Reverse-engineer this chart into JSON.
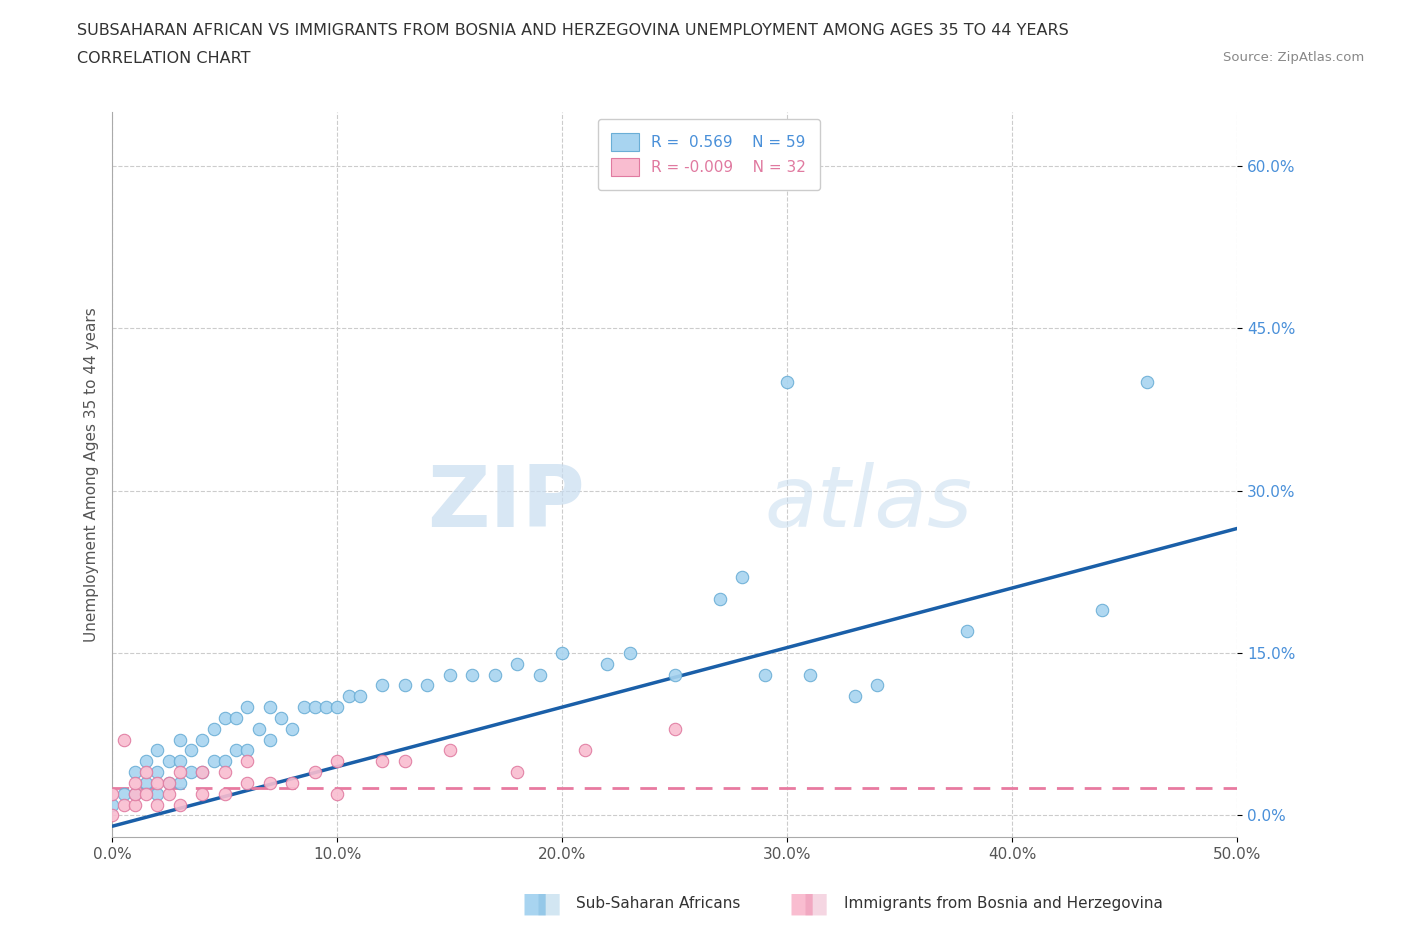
{
  "title_line1": "SUBSAHARAN AFRICAN VS IMMIGRANTS FROM BOSNIA AND HERZEGOVINA UNEMPLOYMENT AMONG AGES 35 TO 44 YEARS",
  "title_line2": "CORRELATION CHART",
  "source_text": "Source: ZipAtlas.com",
  "ylabel": "Unemployment Among Ages 35 to 44 years",
  "xlim": [
    0.0,
    0.5
  ],
  "ylim": [
    -0.02,
    0.65
  ],
  "xtick_labels": [
    "0.0%",
    "10.0%",
    "20.0%",
    "30.0%",
    "40.0%",
    "50.0%"
  ],
  "xtick_vals": [
    0.0,
    0.1,
    0.2,
    0.3,
    0.4,
    0.5
  ],
  "ytick_labels": [
    "0.0%",
    "15.0%",
    "30.0%",
    "45.0%",
    "60.0%"
  ],
  "ytick_vals": [
    0.0,
    0.15,
    0.3,
    0.45,
    0.6
  ],
  "watermark_zip": "ZIP",
  "watermark_atlas": "atlas",
  "legend_R1": "R =  0.569",
  "legend_N1": "N = 59",
  "legend_R2": "R = -0.009",
  "legend_N2": "N = 32",
  "color_blue_fill": "#A8D4F0",
  "color_blue_edge": "#6aaed6",
  "color_pink_fill": "#F9BDD0",
  "color_pink_edge": "#e07aA0",
  "line_blue": "#1a5fa8",
  "line_pink": "#e87aa0",
  "blue_scatter_x": [
    0.0,
    0.005,
    0.01,
    0.01,
    0.015,
    0.015,
    0.02,
    0.02,
    0.02,
    0.025,
    0.025,
    0.03,
    0.03,
    0.03,
    0.035,
    0.035,
    0.04,
    0.04,
    0.045,
    0.045,
    0.05,
    0.05,
    0.055,
    0.055,
    0.06,
    0.06,
    0.065,
    0.07,
    0.07,
    0.075,
    0.08,
    0.085,
    0.09,
    0.095,
    0.1,
    0.105,
    0.11,
    0.12,
    0.13,
    0.14,
    0.15,
    0.16,
    0.17,
    0.18,
    0.19,
    0.2,
    0.22,
    0.23,
    0.25,
    0.27,
    0.28,
    0.29,
    0.3,
    0.31,
    0.33,
    0.34,
    0.38,
    0.44,
    0.46
  ],
  "blue_scatter_y": [
    0.01,
    0.02,
    0.02,
    0.04,
    0.03,
    0.05,
    0.02,
    0.04,
    0.06,
    0.03,
    0.05,
    0.03,
    0.05,
    0.07,
    0.04,
    0.06,
    0.04,
    0.07,
    0.05,
    0.08,
    0.05,
    0.09,
    0.06,
    0.09,
    0.06,
    0.1,
    0.08,
    0.07,
    0.1,
    0.09,
    0.08,
    0.1,
    0.1,
    0.1,
    0.1,
    0.11,
    0.11,
    0.12,
    0.12,
    0.12,
    0.13,
    0.13,
    0.13,
    0.14,
    0.13,
    0.15,
    0.14,
    0.15,
    0.13,
    0.2,
    0.22,
    0.13,
    0.4,
    0.13,
    0.11,
    0.12,
    0.17,
    0.19,
    0.4
  ],
  "pink_scatter_x": [
    0.0,
    0.0,
    0.005,
    0.005,
    0.01,
    0.01,
    0.01,
    0.015,
    0.015,
    0.02,
    0.02,
    0.025,
    0.025,
    0.03,
    0.03,
    0.04,
    0.04,
    0.05,
    0.05,
    0.06,
    0.06,
    0.07,
    0.08,
    0.09,
    0.1,
    0.1,
    0.12,
    0.13,
    0.15,
    0.18,
    0.21,
    0.25
  ],
  "pink_scatter_y": [
    0.0,
    0.02,
    0.01,
    0.07,
    0.01,
    0.02,
    0.03,
    0.02,
    0.04,
    0.01,
    0.03,
    0.02,
    0.03,
    0.01,
    0.04,
    0.02,
    0.04,
    0.02,
    0.04,
    0.03,
    0.05,
    0.03,
    0.03,
    0.04,
    0.02,
    0.05,
    0.05,
    0.05,
    0.06,
    0.04,
    0.06,
    0.08
  ],
  "blue_trend_x": [
    0.0,
    0.5
  ],
  "blue_trend_y": [
    -0.01,
    0.265
  ],
  "pink_trend_x": [
    0.0,
    0.5
  ],
  "pink_trend_y": [
    0.025,
    0.025
  ],
  "grid_color": "#CCCCCC",
  "background_color": "#FFFFFF",
  "label_blue": "Sub-Saharan Africans",
  "label_pink": "Immigrants from Bosnia and Herzegovina"
}
